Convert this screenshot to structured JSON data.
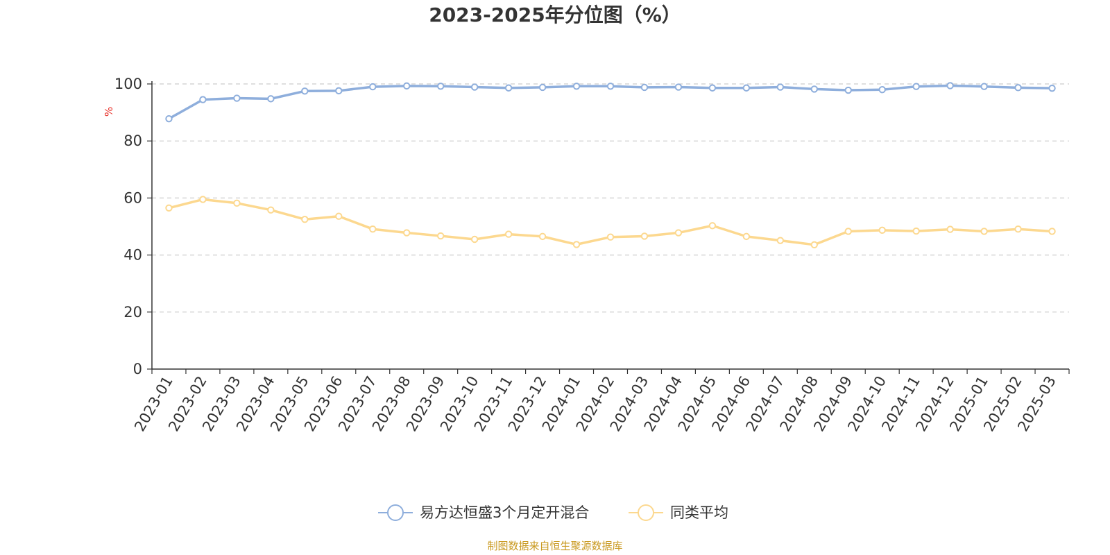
{
  "colors": {
    "series1": "#8eaedc",
    "series2": "#fcd88f",
    "axis": "#333333",
    "grid": "#cccccc",
    "unit": "#e8312a",
    "source": "#c9991f"
  },
  "chart_data": {
    "type": "line",
    "title": "2023-2025年分位图（%）",
    "ylabel": "%",
    "ylim": [
      0,
      100
    ],
    "yticks": [
      0,
      20,
      40,
      60,
      80,
      100
    ],
    "grid": true,
    "legend_position": "bottom",
    "categories": [
      "2023-01",
      "2023-02",
      "2023-03",
      "2023-04",
      "2023-05",
      "2023-06",
      "2023-07",
      "2023-08",
      "2023-09",
      "2023-10",
      "2023-11",
      "2023-12",
      "2024-01",
      "2024-02",
      "2024-03",
      "2024-04",
      "2024-05",
      "2024-06",
      "2024-07",
      "2024-08",
      "2024-09",
      "2024-10",
      "2024-11",
      "2024-12",
      "2025-01",
      "2025-02",
      "2025-03"
    ],
    "series": [
      {
        "name": "易方达恒盛3个月定开混合",
        "color": "#8eaedc",
        "values": [
          87.8,
          94.5,
          95.0,
          94.8,
          97.5,
          97.6,
          99.0,
          99.3,
          99.2,
          98.9,
          98.6,
          98.8,
          99.2,
          99.2,
          98.8,
          98.9,
          98.6,
          98.6,
          98.9,
          98.2,
          97.8,
          98.0,
          99.1,
          99.4,
          99.1,
          98.7,
          98.5
        ]
      },
      {
        "name": "同类平均",
        "color": "#fcd88f",
        "values": [
          56.5,
          59.5,
          58.2,
          55.8,
          52.5,
          53.6,
          49.1,
          47.8,
          46.7,
          45.5,
          47.3,
          46.5,
          43.7,
          46.3,
          46.6,
          47.8,
          50.3,
          46.5,
          45.1,
          43.6,
          48.3,
          48.7,
          48.4,
          49.0,
          48.3,
          49.1,
          48.3
        ]
      }
    ]
  },
  "source_text": "制图数据来自恒生聚源数据库"
}
